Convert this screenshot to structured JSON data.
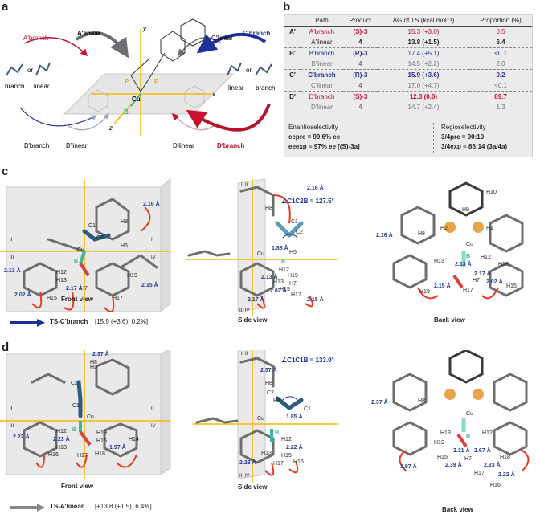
{
  "panel_labels": {
    "a": "a",
    "b": "b",
    "c": "c",
    "d": "d"
  },
  "panel_a": {
    "labels": {
      "a_branch": "A′branch",
      "a_linear": "A′linear",
      "b_branch": "B′branch",
      "b_linear": "B′linear",
      "c_linear": "C′linear",
      "c_branch": "C′branch",
      "d_linear": "D′linear",
      "d_branch": "D′branch",
      "branch_left": "branch",
      "linear_left": "linear",
      "linear_right": "linear",
      "branch_right": "branch",
      "or1": "or",
      "or2": "or"
    },
    "atoms": {
      "p1": "P",
      "p2": "P",
      "cu": "Cu",
      "b": "B"
    },
    "axes": {
      "x": "x",
      "y": "y",
      "z": "z"
    },
    "colors": {
      "red": "#c8102e",
      "blue": "#1f2f99",
      "grey": "#6d6e71",
      "gold": "#f5b800",
      "teal": "#39b7a0"
    }
  },
  "panel_b": {
    "headers": {
      "path": "Path",
      "product": "Product",
      "dg": "ΔG of TS (kcal mol⁻¹)",
      "proportion": "Proportion (%)"
    },
    "rows": [
      {
        "group": "A′",
        "path": "A′branch",
        "product": "(S)-3",
        "dg": "15.3 (+3.0)",
        "prop": "0.5"
      },
      {
        "group": "",
        "path": "A′linear",
        "product": "4",
        "dg": "13.8 (+1.5)",
        "prop": "6.4"
      },
      {
        "group": "B′",
        "path": "B′branch",
        "product": "(R)-3",
        "dg": "17.4 (+5.1)",
        "prop": "<0.1"
      },
      {
        "group": "",
        "path": "B′linear",
        "product": "4",
        "dg": "14.5 (+2.2)",
        "prop": "2.0"
      },
      {
        "group": "C′",
        "path": "C′branch",
        "product": "(R)-3",
        "dg": "15.9 (+3.6)",
        "prop": "0.2"
      },
      {
        "group": "",
        "path": "C′linear",
        "product": "4",
        "dg": "17.0 (+4.7)",
        "prop": "<0.1"
      },
      {
        "group": "D′",
        "path": "D′branch",
        "product": "(S)-3",
        "dg": "12.3 (0.0)",
        "prop": "89.7"
      },
      {
        "group": "",
        "path": "D′linear",
        "product": "4",
        "dg": "14.7 (+2.4)",
        "prop": "1.3"
      }
    ],
    "enantio_title": "Enantioselectivity",
    "regio_title": "Regioselectivity",
    "ee_pre": "eepre = 99.6% ee",
    "ee_exp": "eeexp = 97% ee [(S)-3a]",
    "ratio_pre": "3/4pre = 90:10",
    "ratio_exp": "3/4exp = 86:14 (3a/4a)"
  },
  "panel_c": {
    "front_view": "Front view",
    "side_view": "Side view",
    "back_view": "Back view",
    "angle": "∠C1C2B = 127.5°",
    "ts_label": "TS-C′branch",
    "ts_energy": "[15.9 (+3.6), 0.2%]",
    "quadrants": {
      "q1": "I",
      "q2": "II",
      "q3": "III",
      "q4": "IV",
      "q12": "I, II",
      "q34": "III IV"
    },
    "front_distances": [
      "2.16 Å",
      "2.13 Å",
      "2.02 Å",
      "2.17 Å",
      "2.15 Å"
    ],
    "side_distances": [
      "2.16 Å",
      "1.88 Å",
      "2.13 Å",
      "2.02 Å",
      "2.17 Å",
      "2.15 Å"
    ],
    "back_distances": [
      "2.16 Å",
      "2.13 Å",
      "2.17 Å",
      "2.02 Å",
      "2.15 Å"
    ],
    "front_atoms": [
      "C1",
      "C2",
      "H8",
      "H5",
      "Cu",
      "B",
      "H12",
      "H13",
      "H19",
      "H7",
      "H15",
      "H17"
    ],
    "side_atoms": [
      "H8",
      "C1",
      "C2",
      "H5",
      "Cu",
      "B",
      "H12",
      "H13",
      "H15",
      "H7",
      "H17",
      "H19"
    ],
    "back_atoms": [
      "H10",
      "H9",
      "H8",
      "H2",
      "H1",
      "Cu",
      "B",
      "H13",
      "H12",
      "H18",
      "H7",
      "H15",
      "H19",
      "H17"
    ]
  },
  "panel_d": {
    "front_view": "Front view",
    "side_view": "Side view",
    "back_view": "Back view",
    "angle": "∠C1C1B = 133.0°",
    "ts_label": "TS-A′linear",
    "ts_energy": "[+13.8 (+1.5), 6.4%]",
    "quadrants": {
      "q1": "I",
      "q2": "II",
      "q3": "III",
      "q4": "IV",
      "q12": "I, II",
      "q34": "III IV"
    },
    "front_distances": [
      "2.37 Å",
      "2.22 Å",
      "2.23 Å",
      "1.97 Å"
    ],
    "side_distances": [
      "2.37 Å",
      "1.85 Å",
      "2.22 Å",
      "2.23 Å"
    ],
    "back_distances": [
      "2.37 Å",
      "1.97 Å",
      "2.39 Å",
      "2.31 Å",
      "2.67 Å",
      "2.23 Å",
      "2.22 Å"
    ],
    "front_atoms": [
      "C2",
      "H3",
      "H8",
      "Cu",
      "C1",
      "B",
      "H12",
      "H13",
      "H15",
      "H16",
      "H17",
      "H18",
      "H19",
      "H14"
    ],
    "side_atoms": [
      "H8",
      "C2",
      "H3",
      "Cu",
      "C1",
      "B",
      "H12",
      "H13",
      "H15",
      "H16",
      "H17"
    ],
    "back_atoms": [
      "H8",
      "Cu",
      "H13",
      "B",
      "H12",
      "H19",
      "H15",
      "H7",
      "H17",
      "H18",
      "H16"
    ]
  }
}
